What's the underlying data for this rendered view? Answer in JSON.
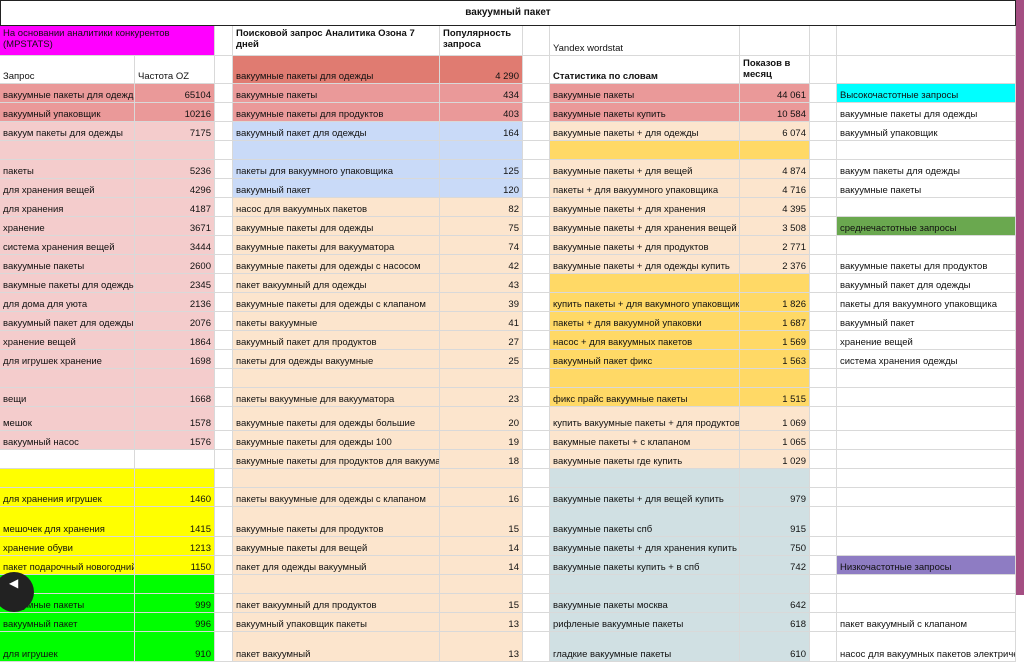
{
  "title": "вакуумный пакет",
  "colors": {
    "magenta": "#ff00ff",
    "salmon_dark": "#e07b71",
    "salmon": "#ea9999",
    "pink": "#f4cccc",
    "blue_light": "#c9daf8",
    "peach": "#fce5cd",
    "orange": "#ffd966",
    "yellow": "#ffff00",
    "green": "#00ff00",
    "grey_blue": "#d0e0e3",
    "cyan": "#00ffff",
    "green_medium": "#6aa84f",
    "purple": "#8e7cc3",
    "accent_bar": "#a44e82"
  },
  "headers": {
    "competitors": "На основании аналитики конкурентов (MPSTATS)",
    "query": "Запрос",
    "freq": "Частота OZ",
    "ozon": "Поисковой запрос Аналитика Озона  7 дней",
    "popularity": "Популярность запроса",
    "yandex": "Yandex wordstat",
    "word_stats": "Статистика по словам",
    "impressions": "Показов в месяц"
  },
  "rows": [
    {
      "a": "вакуумные пакеты для одежд",
      "b": "65104",
      "c": "вакуумные пакеты",
      "d": "434",
      "e": "вакуумные пакеты",
      "f": "44 061",
      "g": "Высокочастотные запросы"
    },
    {
      "a": "вакуумный упаковщик",
      "b": "10216",
      "c": "вакуумные пакеты для продуктов",
      "d": "403",
      "e": "вакуумные пакеты купить",
      "f": "10 584",
      "g": "вакуумные пакеты для одежды"
    },
    {
      "a": "вакуум пакеты для одежды",
      "b": "7175",
      "c": "вакуумный пакет для одежды",
      "d": "164",
      "e": "вакуумные пакеты + для одежды",
      "f": "6 074",
      "g": "вакуумный упаковщик"
    },
    {
      "a": "пакеты",
      "b": "5236",
      "c": "пакеты для вакуумного упаковщика",
      "d": "125",
      "e": "вакуумные пакеты + для вещей",
      "f": "4 874",
      "g": "вакуум пакеты для одежды"
    },
    {
      "a": "для хранения вещей",
      "b": "4296",
      "c": "вакуумный пакет",
      "d": "120",
      "e": "пакеты + для вакуумного упаковщика",
      "f": "4 716",
      "g": "вакуумные пакеты"
    },
    {
      "a": "для хранения",
      "b": "4187",
      "c": "насос для вакуумных пакетов",
      "d": "82",
      "e": "вакуумные пакеты + для хранения",
      "f": "4 395",
      "g": ""
    },
    {
      "a": "хранение",
      "b": "3671",
      "c": "вакуумные пакеты для одежды",
      "d": "75",
      "e": "вакуумные пакеты + для хранения вещей",
      "f": "3 508",
      "g": "среднечастотные запросы"
    },
    {
      "a": "система хранения вещей",
      "b": "3444",
      "c": "вакуумные пакеты для вакууматора",
      "d": "74",
      "e": "вакуумные пакеты + для продуктов",
      "f": "2 771",
      "g": ""
    },
    {
      "a": "вакуумные пакеты",
      "b": "2600",
      "c": "вакуумные пакеты для одежды с насосом",
      "d": "42",
      "e": "вакуумные пакеты + для одежды  купить",
      "f": "2 376",
      "g": "вакуумные пакеты для продуктов"
    },
    {
      "a": "вакумные пакеты для одежды",
      "b": "2345",
      "c": "пакет вакуумный для одежды",
      "d": "43",
      "e": "",
      "f": "",
      "g": "вакуумный пакет для одежды"
    },
    {
      "a": "для дома для уюта",
      "b": "2136",
      "c": "вакуумные пакеты для одежды с клапаном",
      "d": "39",
      "e": "купить пакеты + для вакумного упаковщика",
      "f": "1 826",
      "g": "пакеты для вакуумного упаковщика"
    },
    {
      "a": "вакуумный пакет для одежды",
      "b": "2076",
      "c": "пакеты вакуумные",
      "d": "41",
      "e": "пакеты + для вакуумной упаковки",
      "f": "1 687",
      "g": "вакуумный пакет"
    },
    {
      "a": "хранение вещей",
      "b": "1864",
      "c": "вакуумный пакет для продуктов",
      "d": "27",
      "e": "насос + для вакуумных пакетов",
      "f": "1 569",
      "g": "хранение вещей"
    },
    {
      "a": "для игрушек хранение",
      "b": "1698",
      "c": "пакеты для одежды вакуумные",
      "d": "25",
      "e": "вакуумный пакет фикс",
      "f": "1 563",
      "g": "система хранения одежды"
    },
    {
      "a": "вещи",
      "b": "1668",
      "c": "пакеты вакуумные для вакууматора",
      "d": "23",
      "e": "фикс прайс вакуумные пакеты",
      "f": "1 515",
      "g": ""
    },
    {
      "a": "мешок",
      "b": "1578",
      "c": "вакуумные пакеты для одежды большие",
      "d": "20",
      "e": "купить вакуумные пакеты + для продуктов",
      "f": "1 069",
      "g": ""
    },
    {
      "a": "вакуумный насос",
      "b": "1576",
      "c": "вакуумные пакеты для одежды 100",
      "d": "19",
      "e": "вакумные пакеты + с клапаном",
      "f": "1 065",
      "g": ""
    },
    {
      "a": "",
      "b": "",
      "c": "вакуумные пакеты для продуктов для вакуумат",
      "d": "18",
      "e": "вакуумные пакеты где купить",
      "f": "1 029",
      "g": ""
    },
    {
      "a": "для хранения игрушек",
      "b": "1460",
      "c": "пакеты вакуумные для одежды с клапаном",
      "d": "16",
      "e": "вакуумные пакеты + для вещей купить",
      "f": "979",
      "g": ""
    },
    {
      "a": "мешочек для хранения",
      "b": "1415",
      "c": "вакуумные пакеты для продуктов",
      "d": "15",
      "e": "вакуумные пакеты спб",
      "f": "915",
      "g": ""
    },
    {
      "a": "хранение обуви",
      "b": "1213",
      "c": "вакуумные пакеты для вещей",
      "d": "14",
      "e": "вакуумные пакеты + для хранения купить",
      "f": "750",
      "g": ""
    },
    {
      "a": "пакет подарочный новогодний",
      "b": "1150",
      "c": "пакет для одежды вакуумный",
      "d": "14",
      "e": "вакуумные пакеты купить + в спб",
      "f": "742",
      "g": "Низкочастотные запросы"
    },
    {
      "a": "вакуумные пакеты",
      "b": "999",
      "c": "пакет вакуумный для продуктов",
      "d": "15",
      "e": "вакуумные пакеты москва",
      "f": "642",
      "g": ""
    },
    {
      "a": "вакуумный пакет",
      "b": "996",
      "c": "вакуумный упаковщик пакеты",
      "d": "13",
      "e": "рифленые вакуумные пакеты",
      "f": "618",
      "g": "пакет вакуумный с клапаном"
    },
    {
      "a": "для игрушек",
      "b": "910",
      "c": "пакет вакуумный",
      "d": "13",
      "e": "гладкие вакуумные пакеты",
      "f": "610",
      "g": "насос для вакуумных пакетов электрический"
    }
  ],
  "extra": {
    "ozon_top_query": "вакуумные пакеты для одежды",
    "ozon_top_value": "4 290"
  }
}
